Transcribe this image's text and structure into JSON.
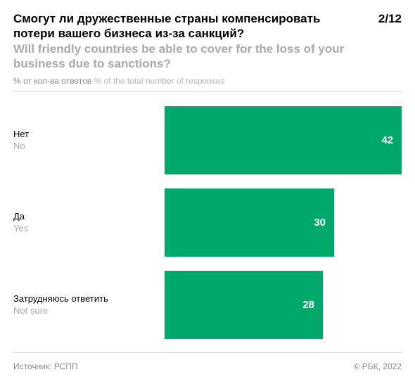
{
  "header": {
    "title_ru": "Смогут ли дружественные страны компенсировать потери вашего бизнеса из-за санкций?",
    "title_en": "Will friendly countries be able to cover for the loss of your business due to sanctions?",
    "page_number": "2/12",
    "subtitle_ru": "% от кол-ва ответов",
    "subtitle_en": "% of the total number of responses"
  },
  "chart_data": {
    "type": "bar",
    "orientation": "horizontal",
    "categories": [
      {
        "ru": "Нет",
        "en": "No"
      },
      {
        "ru": "Да",
        "en": "Yes"
      },
      {
        "ru": "Затрудняюсь ответить",
        "en": "Not sure"
      }
    ],
    "values": [
      42,
      30,
      28
    ],
    "xlim": [
      0,
      42
    ],
    "grid": false,
    "bar_color": "#00a96b"
  },
  "footer": {
    "source": "Источник: РСПП",
    "copyright": "© РБК, 2022"
  }
}
